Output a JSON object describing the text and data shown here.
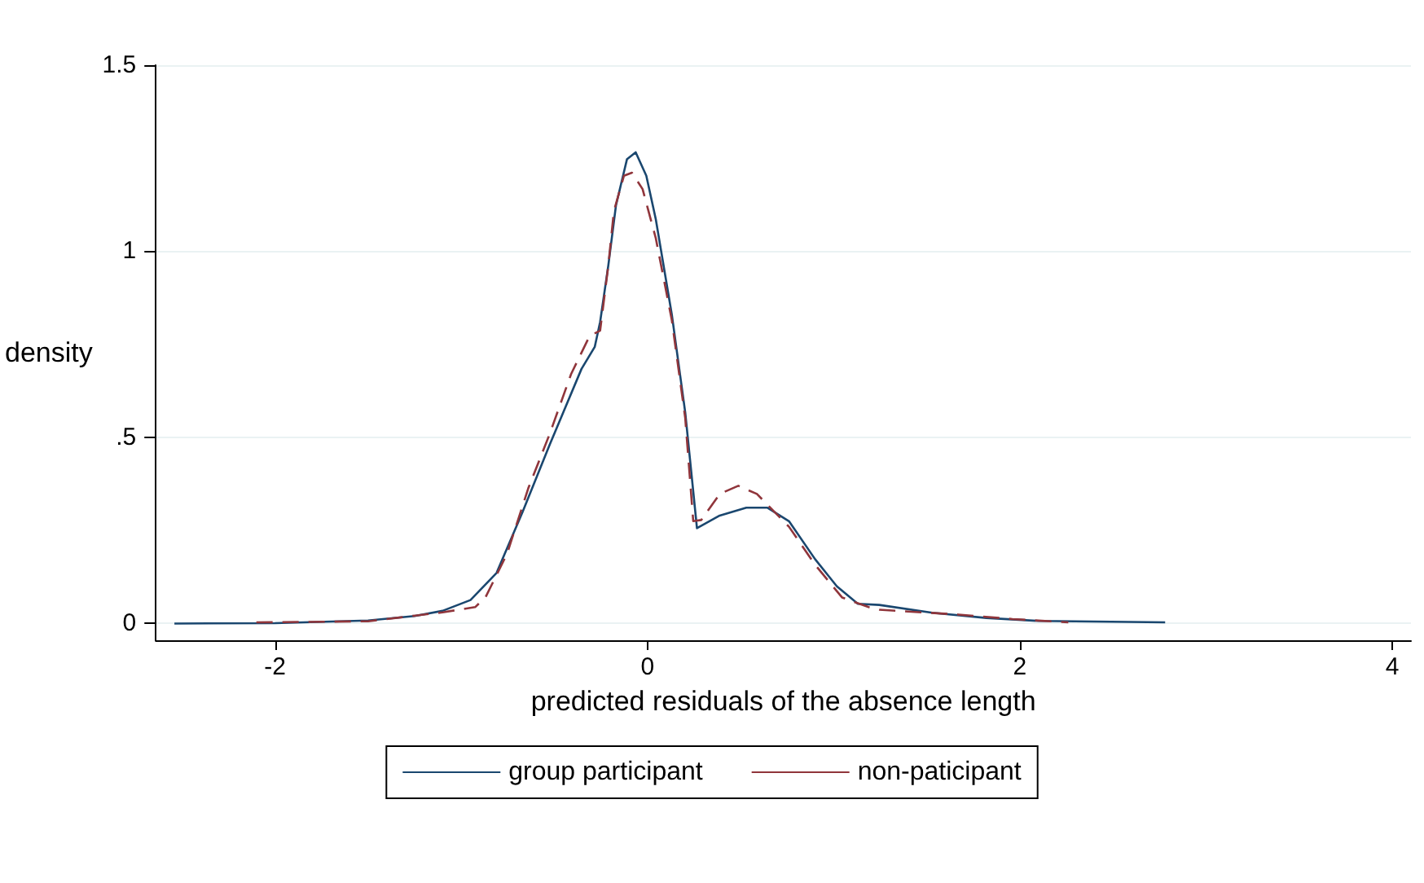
{
  "chart_data": {
    "type": "line",
    "xlabel": "predicted residuals of the absence length",
    "ylabel": "density",
    "xlim": [
      -2.64,
      4.1
    ],
    "xticks": [
      -2,
      0,
      2,
      4
    ],
    "ylim": [
      -0.045,
      1.5
    ],
    "yticks": [
      0,
      {
        "value": 0.5,
        "label": ".5"
      },
      1,
      1.5
    ],
    "grid": "y",
    "legend": "bottom",
    "marker": "none",
    "series": [
      {
        "name": "group participant",
        "color": "#1a476f",
        "line_style": "solid",
        "x": [
          -2.54,
          -2,
          -1.5,
          -1.25,
          -1.1,
          -0.95,
          -0.81,
          -0.67,
          -0.525,
          -0.354,
          -0.283,
          -0.254,
          -0.21,
          -0.169,
          -0.11,
          -0.063,
          -0.006,
          0.045,
          0.131,
          0.203,
          0.266,
          0.388,
          0.531,
          0.645,
          0.76,
          0.9,
          1.017,
          1.13,
          1.245,
          1.53,
          1.82,
          2.1,
          2.78
        ],
        "values": [
          0,
          0.001,
          0.008,
          0.02,
          0.034,
          0.063,
          0.136,
          0.3,
          0.48,
          0.684,
          0.743,
          0.81,
          0.962,
          1.123,
          1.247,
          1.266,
          1.203,
          1.086,
          0.83,
          0.567,
          0.256,
          0.29,
          0.311,
          0.311,
          0.275,
          0.173,
          0.1,
          0.053,
          0.05,
          0.029,
          0.015,
          0.007,
          0.003
        ]
      },
      {
        "name": "non-paticipant",
        "color": "#90353b",
        "line_style": "dashed",
        "x": [
          -2.1,
          -1.5,
          -1.1,
          -0.925,
          -0.87,
          -0.754,
          -0.64,
          -0.525,
          -0.41,
          -0.311,
          -0.254,
          -0.21,
          -0.18,
          -0.126,
          -0.083,
          -0.026,
          0.045,
          0.131,
          0.203,
          0.246,
          0.289,
          0.388,
          0.488,
          0.588,
          0.76,
          0.9,
          1.045,
          1.188,
          1.245,
          1.67,
          1.96,
          2.26
        ],
        "values": [
          0.003,
          0.006,
          0.03,
          0.044,
          0.07,
          0.187,
          0.363,
          0.509,
          0.67,
          0.772,
          0.787,
          0.962,
          1.108,
          1.203,
          1.211,
          1.167,
          1.035,
          0.815,
          0.552,
          0.275,
          0.278,
          0.348,
          0.37,
          0.348,
          0.26,
          0.158,
          0.07,
          0.044,
          0.037,
          0.024,
          0.012,
          0.003
        ]
      }
    ]
  }
}
